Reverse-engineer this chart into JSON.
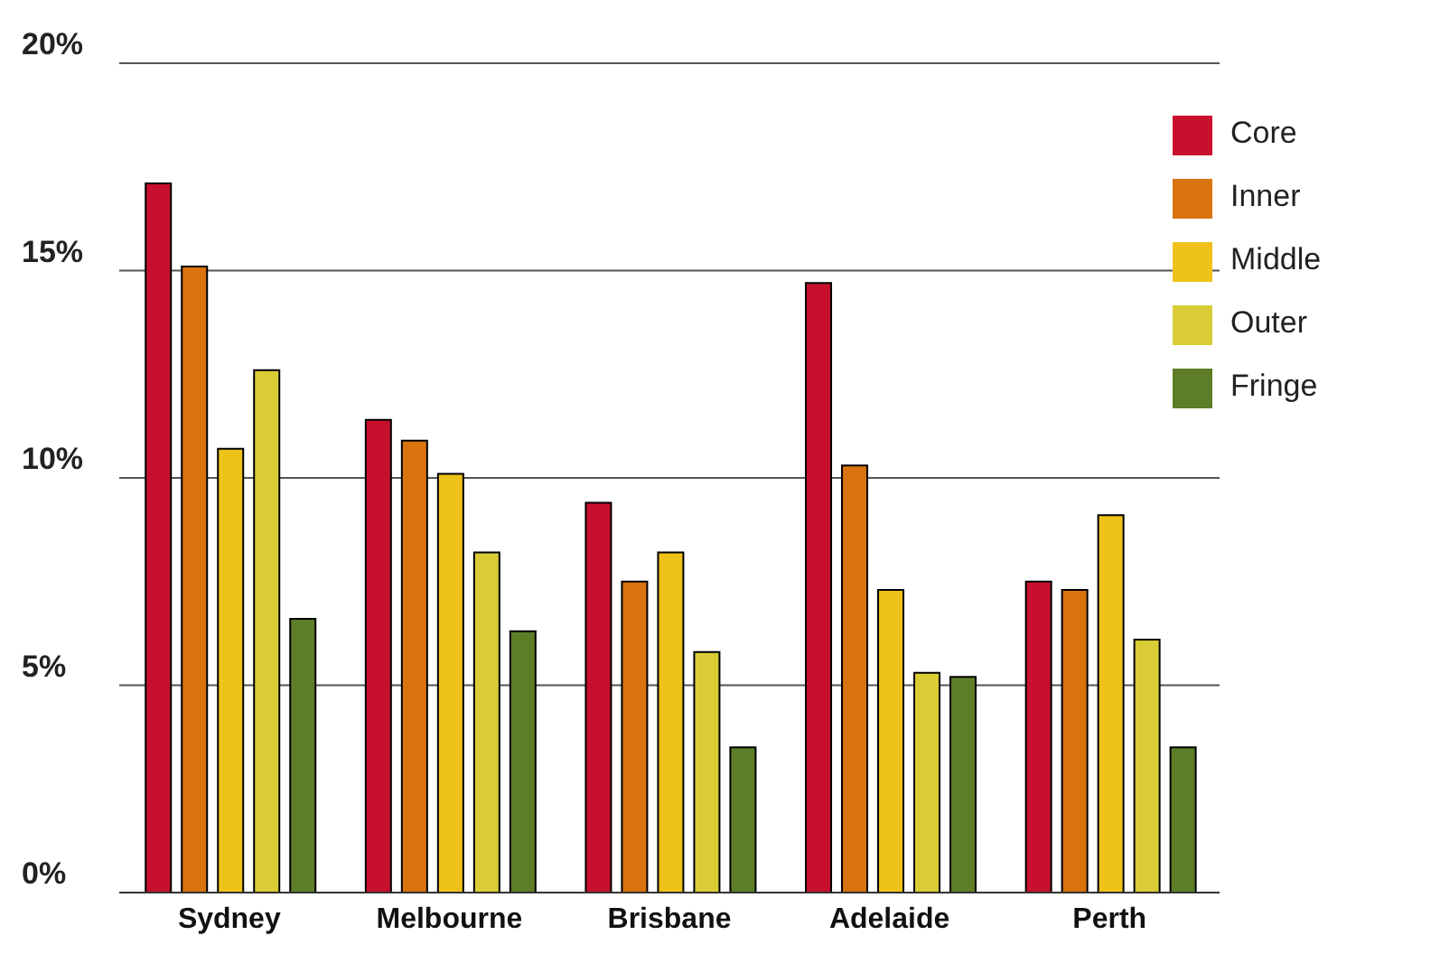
{
  "chart_data": {
    "type": "bar",
    "categories": [
      "Sydney",
      "Melbourne",
      "Brisbane",
      "Adelaide",
      "Perth"
    ],
    "series": [
      {
        "name": "Core",
        "color": "#c8102e",
        "values": [
          17.1,
          11.4,
          9.4,
          14.7,
          7.5
        ]
      },
      {
        "name": "Inner",
        "color": "#d9730d",
        "values": [
          15.1,
          10.9,
          7.5,
          10.3,
          7.3
        ]
      },
      {
        "name": "Middle",
        "color": "#efc21a",
        "values": [
          10.7,
          10.1,
          8.2,
          7.3,
          9.1
        ]
      },
      {
        "name": "Outer",
        "color": "#d9cc35",
        "values": [
          12.6,
          8.2,
          5.8,
          5.3,
          6.1
        ]
      },
      {
        "name": "Fringe",
        "color": "#5d7d27",
        "values": [
          6.6,
          6.3,
          3.5,
          5.2,
          3.5
        ]
      }
    ],
    "ylim": [
      0,
      20
    ],
    "yticks": [
      {
        "value": 0,
        "label": "0%"
      },
      {
        "value": 5,
        "label": "5%"
      },
      {
        "value": 10,
        "label": "10%"
      },
      {
        "value": 15,
        "label": "15%"
      },
      {
        "value": 20,
        "label": "20%"
      }
    ],
    "grid": "y",
    "legend": "top right"
  }
}
